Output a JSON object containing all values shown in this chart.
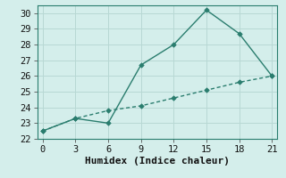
{
  "xlabel": "Humidex (Indice chaleur)",
  "line1_x": [
    0,
    3,
    6,
    9,
    12,
    15,
    18,
    21
  ],
  "line1_y": [
    22.5,
    23.3,
    23.0,
    26.7,
    28.0,
    30.2,
    28.7,
    26.0
  ],
  "line2_x": [
    0,
    3,
    6,
    9,
    12,
    15,
    18,
    21
  ],
  "line2_y": [
    22.5,
    23.3,
    23.8,
    24.1,
    24.6,
    25.1,
    25.6,
    26.0
  ],
  "line_color": "#2a7d6e",
  "marker": "D",
  "markersize": 2.8,
  "linewidth": 1.0,
  "xlim": [
    -0.5,
    21.5
  ],
  "ylim": [
    22,
    30.5
  ],
  "xticks": [
    0,
    3,
    6,
    9,
    12,
    15,
    18,
    21
  ],
  "yticks": [
    22,
    23,
    24,
    25,
    26,
    27,
    28,
    29,
    30
  ],
  "bg_color": "#d4eeeb",
  "grid_color": "#b8d8d4",
  "xlabel_fontsize": 8,
  "tick_fontsize": 7.5
}
